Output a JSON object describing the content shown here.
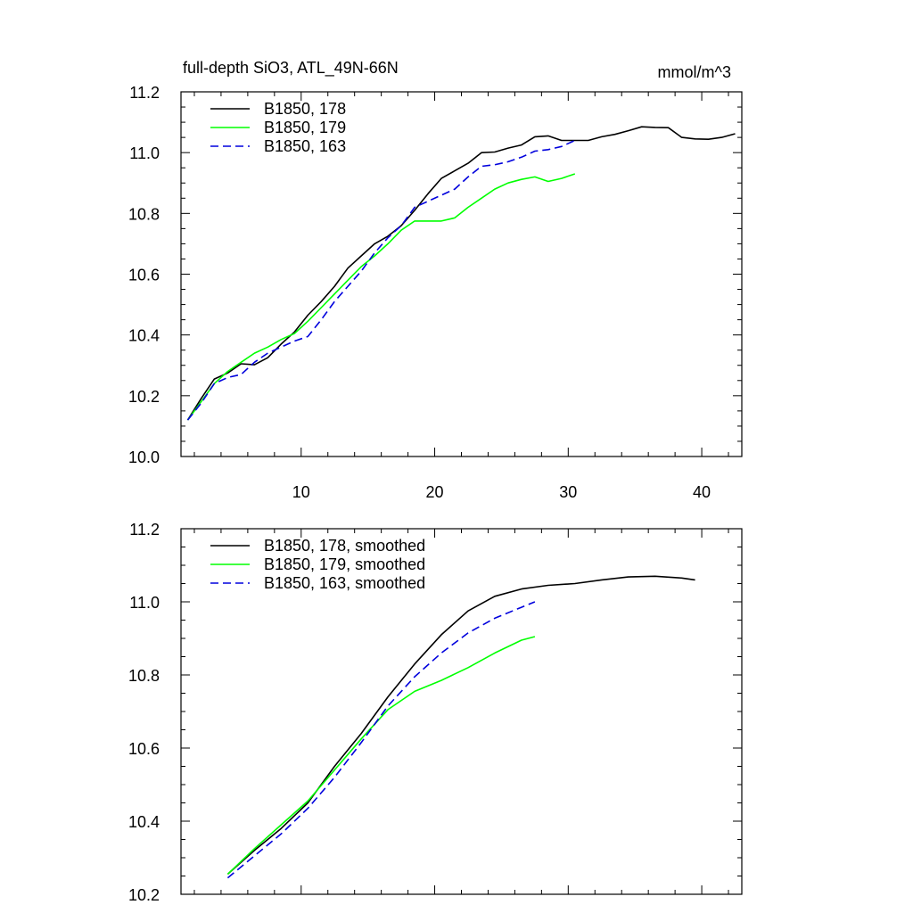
{
  "chart_data": [
    {
      "type": "line",
      "title": "full-depth SiO3, ATL_49N-66N",
      "units": "mmol/m^3",
      "xlabel": "",
      "ylabel": "",
      "xlim": [
        1,
        43
      ],
      "ylim": [
        10.0,
        11.2
      ],
      "x_ticks": [
        10,
        20,
        30,
        40
      ],
      "x_tick_labels": [
        "10",
        "20",
        "30",
        "40"
      ],
      "y_ticks": [
        10.0,
        10.2,
        10.4,
        10.6,
        10.8,
        11.0,
        11.2
      ],
      "y_tick_labels": [
        "10.0",
        "10.2",
        "10.4",
        "10.6",
        "10.8",
        "11.0",
        "11.2"
      ],
      "grid": false,
      "legend_position": "top-left",
      "series": [
        {
          "name": "B1850, 178",
          "color": "#000000",
          "dash": "solid",
          "x": [
            1.5,
            2.5,
            3.5,
            4.5,
            5.5,
            6.5,
            7.5,
            8.5,
            9.5,
            10.5,
            11.5,
            12.5,
            13.5,
            14.5,
            15.5,
            16.5,
            17.5,
            18.5,
            19.5,
            20.5,
            21.5,
            22.5,
            23.5,
            24.5,
            25.5,
            26.5,
            27.5,
            28.5,
            29.5,
            30.5,
            31.5,
            32.5,
            33.5,
            34.5,
            35.5,
            36.5,
            37.5,
            38.5,
            39.5,
            40.5,
            41.5,
            42.5
          ],
          "y": [
            10.12,
            10.19,
            10.255,
            10.275,
            10.305,
            10.302,
            10.325,
            10.37,
            10.41,
            10.465,
            10.51,
            10.56,
            10.62,
            10.66,
            10.7,
            10.725,
            10.76,
            10.81,
            10.865,
            10.915,
            10.94,
            10.965,
            11.0,
            11.002,
            11.015,
            11.025,
            11.052,
            11.055,
            11.04,
            11.04,
            11.04,
            11.052,
            11.06,
            11.072,
            11.085,
            11.083,
            11.082,
            11.05,
            11.045,
            11.044,
            11.05,
            11.062
          ]
        },
        {
          "name": "B1850, 179",
          "color": "#00ff00",
          "dash": "solid",
          "x": [
            1.5,
            2.5,
            3.5,
            4.5,
            5.5,
            6.5,
            7.5,
            8.5,
            9.5,
            10.5,
            11.5,
            12.5,
            13.5,
            14.5,
            15.5,
            16.5,
            17.5,
            18.5,
            19.5,
            20.5,
            21.5,
            22.5,
            23.5,
            24.5,
            25.5,
            26.5,
            27.5,
            28.5,
            29.5,
            30.5
          ],
          "y": [
            10.12,
            10.18,
            10.24,
            10.28,
            10.31,
            10.34,
            10.36,
            10.385,
            10.405,
            10.445,
            10.49,
            10.535,
            10.58,
            10.625,
            10.66,
            10.7,
            10.745,
            10.775,
            10.775,
            10.775,
            10.785,
            10.82,
            10.85,
            10.88,
            10.9,
            10.912,
            10.92,
            10.905,
            10.915,
            10.93
          ]
        },
        {
          "name": "B1850, 163",
          "color": "#0000dd",
          "dash": "dashed",
          "x": [
            1.5,
            2.5,
            3.5,
            4.5,
            5.5,
            6.5,
            7.5,
            8.5,
            9.5,
            10.5,
            11.5,
            12.5,
            13.5,
            14.5,
            15.5,
            16.5,
            17.5,
            18.5,
            19.5,
            20.5,
            21.5,
            22.5,
            23.5,
            24.5,
            25.5,
            26.5,
            27.5,
            28.5,
            29.5,
            30.5
          ],
          "y": [
            10.12,
            10.175,
            10.24,
            10.26,
            10.27,
            10.31,
            10.34,
            10.36,
            10.38,
            10.395,
            10.45,
            10.51,
            10.56,
            10.61,
            10.67,
            10.72,
            10.76,
            10.82,
            10.84,
            10.86,
            10.88,
            10.92,
            10.955,
            10.96,
            10.97,
            10.985,
            11.005,
            11.01,
            11.02,
            11.04
          ]
        }
      ]
    },
    {
      "type": "line",
      "title": "",
      "xlabel": "",
      "ylabel": "",
      "xlim": [
        1,
        43
      ],
      "ylim": [
        10.2,
        11.2
      ],
      "x_ticks": [
        10,
        20,
        30,
        40
      ],
      "y_ticks": [
        10.2,
        10.4,
        10.6,
        10.8,
        11.0,
        11.2
      ],
      "y_tick_labels": [
        "10.2",
        "10.4",
        "10.6",
        "10.8",
        "11.0",
        "11.2"
      ],
      "grid": false,
      "legend_position": "top-left",
      "series": [
        {
          "name": "B1850, 178, smoothed",
          "color": "#000000",
          "dash": "solid",
          "x": [
            4.5,
            6.5,
            8.5,
            10.5,
            12.5,
            14.5,
            16.5,
            18.5,
            20.5,
            22.5,
            24.5,
            26.5,
            28.5,
            30.5,
            32.5,
            34.5,
            36.5,
            38.5,
            39.5
          ],
          "y": [
            10.255,
            10.32,
            10.38,
            10.45,
            10.55,
            10.64,
            10.74,
            10.83,
            10.91,
            10.975,
            11.015,
            11.035,
            11.045,
            11.05,
            11.06,
            11.068,
            11.07,
            11.065,
            11.06
          ]
        },
        {
          "name": "B1850, 179, smoothed",
          "color": "#00ff00",
          "dash": "solid",
          "x": [
            4.5,
            6.5,
            8.5,
            10.5,
            12.5,
            14.5,
            16.5,
            18.5,
            20.5,
            22.5,
            24.5,
            26.5,
            27.5
          ],
          "y": [
            10.255,
            10.325,
            10.39,
            10.455,
            10.54,
            10.625,
            10.705,
            10.755,
            10.785,
            10.82,
            10.86,
            10.895,
            10.905
          ]
        },
        {
          "name": "B1850, 163, smoothed",
          "color": "#0000dd",
          "dash": "dashed",
          "x": [
            4.5,
            6.5,
            8.5,
            10.5,
            12.5,
            14.5,
            16.5,
            18.5,
            20.5,
            22.5,
            24.5,
            26.5,
            27.5
          ],
          "y": [
            10.245,
            10.305,
            10.365,
            10.435,
            10.52,
            10.615,
            10.715,
            10.795,
            10.86,
            10.915,
            10.955,
            10.985,
            11.0
          ]
        }
      ]
    }
  ]
}
